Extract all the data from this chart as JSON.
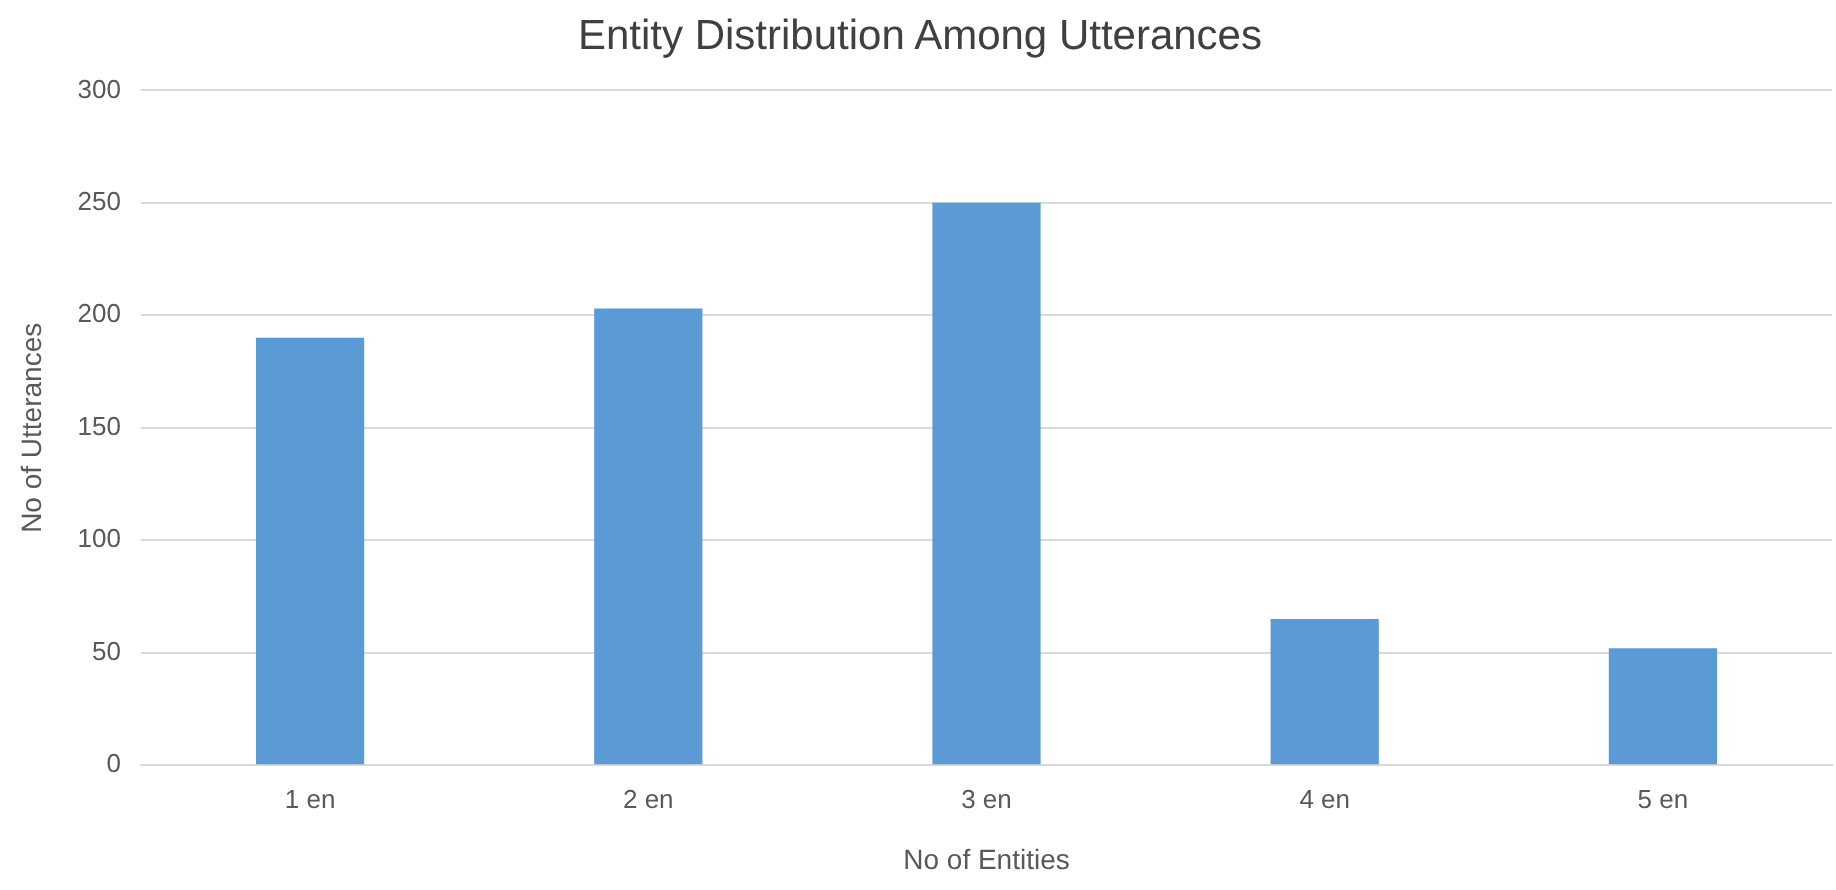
{
  "chart_data": {
    "type": "bar",
    "title": "Entity Distribution Among Utterances",
    "xlabel": "No of Entities",
    "ylabel": "No of Utterances",
    "categories": [
      "1 en",
      "2 en",
      "3 en",
      "4 en",
      "5 en"
    ],
    "values": [
      190,
      203,
      250,
      65,
      52
    ],
    "color": "#5b9bd5",
    "ylim": [
      0,
      300
    ],
    "yticks": [
      0,
      50,
      100,
      150,
      200,
      250,
      300
    ],
    "grid": "y"
  }
}
